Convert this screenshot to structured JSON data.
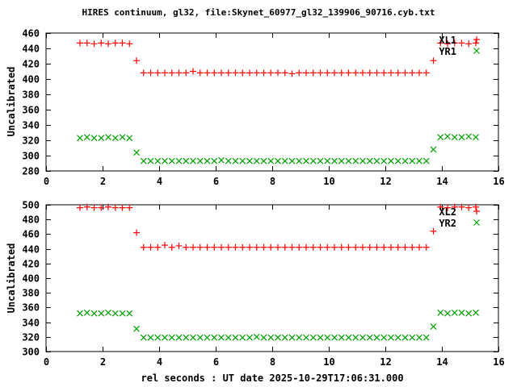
{
  "title": "HIRES continuum, gl32, file:Skynet_60977_gl32_139906_90716.cyb.txt",
  "xlabel": "rel seconds : UT date 2025-10-29T17:06:31.000",
  "colors": {
    "background": "#ffffff",
    "axis": "#000000",
    "text": "#000000",
    "series_red": "#ff0000",
    "series_green": "#00a000"
  },
  "chart_data": [
    {
      "type": "scatter",
      "panel": "top",
      "ylabel": "Uncalibrated",
      "xlim": [
        0,
        16
      ],
      "ylim": [
        280,
        460
      ],
      "xticks": [
        0,
        2,
        4,
        6,
        8,
        10,
        12,
        14,
        16
      ],
      "yticks": [
        280,
        300,
        320,
        340,
        360,
        380,
        400,
        420,
        440,
        460
      ],
      "grid": false,
      "legend_position": "top-right-inside",
      "x": [
        1.2,
        1.45,
        1.7,
        1.95,
        2.2,
        2.45,
        2.7,
        2.95,
        3.2,
        3.45,
        3.7,
        3.95,
        4.2,
        4.45,
        4.7,
        4.95,
        5.2,
        5.45,
        5.7,
        5.95,
        6.2,
        6.45,
        6.7,
        6.95,
        7.2,
        7.45,
        7.7,
        7.95,
        8.2,
        8.45,
        8.7,
        8.95,
        9.2,
        9.45,
        9.7,
        9.95,
        10.2,
        10.45,
        10.7,
        10.95,
        11.2,
        11.45,
        11.7,
        11.95,
        12.2,
        12.45,
        12.7,
        12.95,
        13.2,
        13.45,
        13.7,
        13.95,
        14.2,
        14.45,
        14.7,
        14.95,
        15.2
      ],
      "series": [
        {
          "name": "XL1",
          "marker": "plus",
          "color": "#ff0000",
          "y": [
            447,
            447,
            446,
            447,
            446,
            447,
            447,
            446,
            424,
            408,
            408,
            408,
            408,
            408,
            408,
            408,
            410,
            408,
            408,
            408,
            408,
            408,
            408,
            408,
            408,
            408,
            408,
            408,
            408,
            408,
            407,
            408,
            408,
            408,
            408,
            408,
            408,
            408,
            408,
            408,
            408,
            408,
            408,
            408,
            408,
            408,
            408,
            408,
            408,
            408,
            424,
            447,
            446,
            447,
            447,
            446,
            447
          ]
        },
        {
          "name": "YR1",
          "marker": "cross",
          "color": "#00a000",
          "y": [
            323,
            324,
            323,
            323,
            324,
            323,
            324,
            323,
            304,
            293,
            293,
            293,
            293,
            293,
            293,
            293,
            293,
            293,
            293,
            293,
            294,
            293,
            293,
            293,
            293,
            293,
            293,
            293,
            293,
            293,
            293,
            293,
            293,
            293,
            293,
            293,
            293,
            293,
            293,
            293,
            293,
            293,
            293,
            293,
            293,
            293,
            293,
            293,
            293,
            293,
            308,
            324,
            325,
            324,
            324,
            325,
            324
          ]
        }
      ]
    },
    {
      "type": "scatter",
      "panel": "bottom",
      "ylabel": "Uncalibrated",
      "xlim": [
        0,
        16
      ],
      "ylim": [
        300,
        500
      ],
      "xticks": [
        0,
        2,
        4,
        6,
        8,
        10,
        12,
        14,
        16
      ],
      "yticks": [
        300,
        320,
        340,
        360,
        380,
        400,
        420,
        440,
        460,
        480,
        500
      ],
      "grid": false,
      "legend_position": "top-right-inside",
      "x": [
        1.2,
        1.45,
        1.7,
        1.95,
        2.2,
        2.45,
        2.7,
        2.95,
        3.2,
        3.45,
        3.7,
        3.95,
        4.2,
        4.45,
        4.7,
        4.95,
        5.2,
        5.45,
        5.7,
        5.95,
        6.2,
        6.45,
        6.7,
        6.95,
        7.2,
        7.45,
        7.7,
        7.95,
        8.2,
        8.45,
        8.7,
        8.95,
        9.2,
        9.45,
        9.7,
        9.95,
        10.2,
        10.45,
        10.7,
        10.95,
        11.2,
        11.45,
        11.7,
        11.95,
        12.2,
        12.45,
        12.7,
        12.95,
        13.2,
        13.45,
        13.7,
        13.95,
        14.2,
        14.45,
        14.7,
        14.95,
        15.2
      ],
      "series": [
        {
          "name": "XL2",
          "marker": "plus",
          "color": "#ff0000",
          "y": [
            496,
            497,
            496,
            496,
            497,
            496,
            496,
            496,
            462,
            442,
            442,
            442,
            445,
            442,
            444,
            442,
            442,
            442,
            442,
            442,
            442,
            442,
            442,
            442,
            442,
            442,
            442,
            442,
            442,
            442,
            442,
            442,
            442,
            442,
            442,
            442,
            442,
            442,
            442,
            442,
            442,
            442,
            442,
            442,
            442,
            442,
            442,
            442,
            442,
            442,
            464,
            497,
            496,
            497,
            497,
            496,
            497
          ]
        },
        {
          "name": "YR2",
          "marker": "cross",
          "color": "#00a000",
          "y": [
            352,
            353,
            352,
            352,
            353,
            352,
            352,
            352,
            331,
            319,
            319,
            319,
            319,
            319,
            319,
            319,
            319,
            319,
            319,
            319,
            319,
            319,
            319,
            319,
            319,
            320,
            319,
            319,
            319,
            319,
            319,
            319,
            319,
            319,
            319,
            319,
            319,
            319,
            319,
            319,
            319,
            319,
            319,
            319,
            319,
            319,
            319,
            319,
            319,
            319,
            334,
            353,
            352,
            353,
            353,
            352,
            353
          ]
        }
      ]
    }
  ]
}
